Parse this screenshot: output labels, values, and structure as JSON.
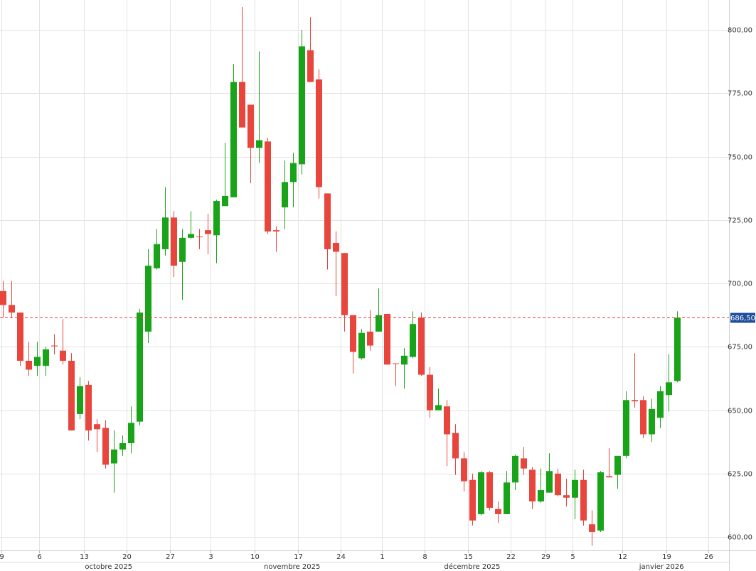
{
  "chart_data": {
    "type": "candlestick",
    "up_color": "#19a319",
    "down_color": "#e8453c",
    "grid": true,
    "xlim": [
      -0.33,
      85.1
    ],
    "ylim": [
      594.7,
      811.8
    ],
    "yticks": [
      {
        "value": 600,
        "label": "600,00"
      },
      {
        "value": 625,
        "label": "625,00"
      },
      {
        "value": 650,
        "label": "650,00"
      },
      {
        "value": 675,
        "label": "675,00"
      },
      {
        "value": 700,
        "label": "700,00"
      },
      {
        "value": 725,
        "label": "725,00"
      },
      {
        "value": 750,
        "label": "750,00"
      },
      {
        "value": 775,
        "label": "775,00"
      },
      {
        "value": 800,
        "label": "800,00"
      }
    ],
    "xticks": [
      {
        "value": -0.2,
        "label": "9"
      },
      {
        "value": 4.25,
        "label": "6"
      },
      {
        "value": 9.5,
        "label": "13"
      },
      {
        "value": 14.5,
        "label": "20"
      },
      {
        "value": 19.6,
        "label": "27"
      },
      {
        "value": 24.3,
        "label": "3"
      },
      {
        "value": 29.5,
        "label": "10"
      },
      {
        "value": 34.6,
        "label": "17"
      },
      {
        "value": 39.6,
        "label": "24"
      },
      {
        "value": 44.4,
        "label": "1"
      },
      {
        "value": 49.4,
        "label": "8"
      },
      {
        "value": 54.5,
        "label": "15"
      },
      {
        "value": 59.5,
        "label": "22"
      },
      {
        "value": 63.6,
        "label": "29"
      },
      {
        "value": 66.75,
        "label": "5"
      },
      {
        "value": 72.6,
        "label": "12"
      },
      {
        "value": 77.75,
        "label": "19"
      },
      {
        "value": 82.7,
        "label": "26"
      }
    ],
    "months": [
      {
        "value": 12.4,
        "label": "octobre 2025"
      },
      {
        "value": 33.9,
        "label": "novembre 2025"
      },
      {
        "value": 55,
        "label": "décembre 2025"
      },
      {
        "value": 77.2,
        "label": "janvier 2026"
      }
    ],
    "last_price": {
      "value": 686.5,
      "label": "686,50",
      "color": "#1f4e9c"
    },
    "open": [
      697,
      691.5,
      688.5,
      669.5,
      667.5,
      667.5,
      675.5,
      673.5,
      669.5,
      648.5,
      660,
      644.5,
      643,
      629,
      634.5,
      637,
      645.5,
      681,
      706,
      713.5,
      726,
      708.5,
      718,
      718.5,
      721,
      719,
      730.5,
      734,
      779.5,
      770.5,
      753.5,
      756,
      721,
      730,
      740,
      747,
      792,
      780.5,
      735.5,
      716,
      712,
      687.5,
      670.5,
      681,
      681,
      688,
      668.5,
      668,
      671,
      686.5,
      664,
      650,
      651.5,
      641,
      631,
      622.5,
      609,
      625.5,
      611,
      609,
      621.5,
      631,
      626.5,
      614,
      617.5,
      625,
      616.5,
      615.5,
      622.5,
      605,
      602.5,
      624,
      624.5,
      632,
      654,
      654,
      640.5,
      647,
      656,
      661.5
    ],
    "high": [
      701,
      701,
      688.5,
      677,
      677,
      675,
      680,
      686,
      672.5,
      663,
      661.5,
      646.5,
      646,
      642,
      640,
      651.5,
      690,
      713.5,
      721.5,
      738,
      728.5,
      721.5,
      728.5,
      721.5,
      727.5,
      733,
      755.5,
      786.5,
      809,
      770.5,
      791.5,
      757.5,
      722.5,
      748.5,
      751.5,
      800,
      805,
      784.5,
      735.5,
      720.5,
      712,
      687.5,
      682,
      689.5,
      698,
      688,
      668.5,
      674.5,
      689,
      688.5,
      667,
      658.5,
      654,
      644.5,
      633.5,
      625,
      626,
      626,
      614,
      626,
      632.5,
      635.5,
      627.5,
      627,
      633,
      627,
      623,
      626.5,
      626.5,
      610.5,
      626,
      635,
      632,
      657.5,
      672.5,
      655.5,
      654.5,
      659.5,
      672,
      689
    ],
    "low": [
      686.5,
      686.5,
      667.5,
      663.5,
      663.5,
      663.5,
      672,
      668,
      642,
      646.5,
      638,
      633.5,
      627,
      617.5,
      632,
      633,
      644,
      676.5,
      705.5,
      711,
      702.5,
      693.5,
      717.5,
      713.5,
      711.5,
      708,
      730.5,
      734,
      761.5,
      739.5,
      747.5,
      719.5,
      712.5,
      721.5,
      730,
      743,
      779.5,
      733.5,
      705.5,
      695,
      681,
      664.5,
      670,
      673.5,
      681,
      668,
      659.5,
      658.5,
      670.5,
      663.5,
      647,
      650,
      628,
      624.5,
      618,
      604.5,
      608.5,
      610.5,
      605.5,
      609,
      618.5,
      624.5,
      611,
      613.5,
      617.5,
      616,
      612,
      607,
      604.5,
      596.5,
      602,
      623.5,
      619,
      631,
      651,
      639,
      637.5,
      643,
      649.5,
      661
    ],
    "close": [
      691.5,
      688.5,
      669.5,
      666,
      671,
      674,
      675.5,
      669.5,
      642,
      659.5,
      642,
      642.5,
      628.5,
      634.5,
      637,
      645,
      688.5,
      707,
      715.5,
      726,
      707,
      718,
      719.5,
      718.5,
      719.5,
      732.5,
      734.5,
      779.5,
      761.5,
      753.5,
      756.5,
      720.5,
      720.5,
      740,
      747.5,
      793.5,
      779.5,
      738,
      713.5,
      712.5,
      687.5,
      673,
      680.5,
      675.5,
      687.5,
      668,
      668.5,
      671.5,
      684,
      664,
      650,
      652,
      640.5,
      631,
      622,
      606.5,
      625.5,
      611.5,
      609,
      621.5,
      632,
      627,
      614,
      618.5,
      626,
      616.5,
      615.5,
      622.5,
      606.5,
      602,
      625.5,
      623.5,
      632,
      654,
      653.5,
      640.5,
      650.5,
      657.5,
      661,
      686.5
    ]
  }
}
